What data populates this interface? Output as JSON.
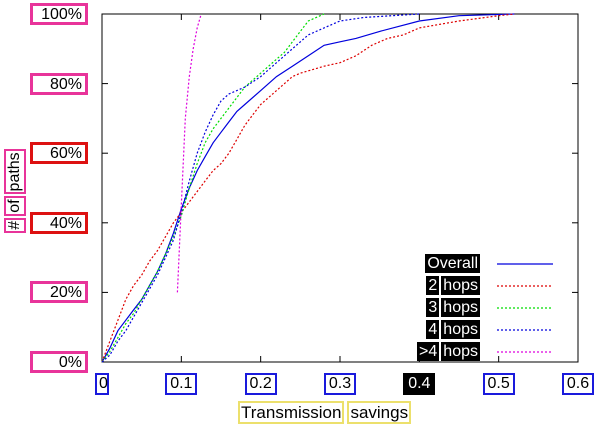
{
  "chart_data": {
    "type": "line",
    "xlabel": [
      "Transmission",
      "savings"
    ],
    "ylabel": [
      "#",
      "of",
      "paths"
    ],
    "xlim": [
      0,
      0.6
    ],
    "ylim": [
      0,
      100
    ],
    "x_ticks": [
      {
        "label": "0",
        "v": 0
      },
      {
        "label": "0.1",
        "v": 0.1
      },
      {
        "label": "0.2",
        "v": 0.2
      },
      {
        "label": "0.3",
        "v": 0.3
      },
      {
        "label": "0.4",
        "v": 0.4
      },
      {
        "label": "0.5",
        "v": 0.5
      },
      {
        "label": "0.6",
        "v": 0.6
      }
    ],
    "y_ticks": [
      {
        "label": "0%",
        "v": 0,
        "box": "#e8349a"
      },
      {
        "label": "20%",
        "v": 20,
        "box": "#e8349a"
      },
      {
        "label": "40%",
        "v": 40,
        "box": "#dd1111"
      },
      {
        "label": "60%",
        "v": 60,
        "box": "#dd1111"
      },
      {
        "label": "80%",
        "v": 80,
        "box": "#e8349a"
      },
      {
        "label": "100%",
        "v": 100,
        "box": "#e8349a"
      }
    ],
    "legend_position": "bottom-right",
    "series": [
      {
        "name": "Overall",
        "color": "#0000dd",
        "dash": "none",
        "legend": [
          "Overall"
        ],
        "points": [
          [
            0,
            0
          ],
          [
            0.01,
            4
          ],
          [
            0.02,
            9
          ],
          [
            0.03,
            12
          ],
          [
            0.04,
            15
          ],
          [
            0.05,
            18
          ],
          [
            0.06,
            22
          ],
          [
            0.07,
            26
          ],
          [
            0.08,
            31
          ],
          [
            0.09,
            37
          ],
          [
            0.1,
            44
          ],
          [
            0.11,
            50
          ],
          [
            0.12,
            55
          ],
          [
            0.13,
            59
          ],
          [
            0.14,
            63
          ],
          [
            0.15,
            66
          ],
          [
            0.16,
            69
          ],
          [
            0.17,
            72
          ],
          [
            0.18,
            74
          ],
          [
            0.2,
            78
          ],
          [
            0.22,
            82
          ],
          [
            0.24,
            85
          ],
          [
            0.26,
            88
          ],
          [
            0.28,
            91
          ],
          [
            0.3,
            92
          ],
          [
            0.32,
            93
          ],
          [
            0.35,
            95
          ],
          [
            0.4,
            98
          ],
          [
            0.45,
            99.5
          ],
          [
            0.52,
            100
          ]
        ]
      },
      {
        "name": "2 hops",
        "color": "#dd0000",
        "dash": "2,2",
        "legend": [
          "2",
          "hops"
        ],
        "points": [
          [
            0,
            0
          ],
          [
            0.01,
            6
          ],
          [
            0.02,
            12
          ],
          [
            0.03,
            18
          ],
          [
            0.04,
            22
          ],
          [
            0.05,
            25
          ],
          [
            0.06,
            29
          ],
          [
            0.07,
            32
          ],
          [
            0.08,
            36
          ],
          [
            0.09,
            40
          ],
          [
            0.1,
            43
          ],
          [
            0.11,
            46
          ],
          [
            0.12,
            49
          ],
          [
            0.13,
            52
          ],
          [
            0.14,
            55
          ],
          [
            0.15,
            57
          ],
          [
            0.16,
            60
          ],
          [
            0.17,
            64
          ],
          [
            0.18,
            68
          ],
          [
            0.19,
            71
          ],
          [
            0.2,
            74
          ],
          [
            0.22,
            78
          ],
          [
            0.24,
            82
          ],
          [
            0.25,
            83
          ],
          [
            0.28,
            85
          ],
          [
            0.3,
            86
          ],
          [
            0.32,
            88
          ],
          [
            0.34,
            91
          ],
          [
            0.36,
            93
          ],
          [
            0.38,
            94
          ],
          [
            0.4,
            96
          ],
          [
            0.45,
            98
          ],
          [
            0.5,
            99.5
          ],
          [
            0.52,
            100
          ]
        ]
      },
      {
        "name": "3 hops",
        "color": "#00dd00",
        "dash": "2,2",
        "legend": [
          "3",
          "hops"
        ],
        "points": [
          [
            0,
            0
          ],
          [
            0.01,
            3
          ],
          [
            0.02,
            7
          ],
          [
            0.03,
            11
          ],
          [
            0.04,
            14
          ],
          [
            0.05,
            18
          ],
          [
            0.06,
            22
          ],
          [
            0.07,
            26
          ],
          [
            0.08,
            31
          ],
          [
            0.09,
            36
          ],
          [
            0.1,
            42
          ],
          [
            0.11,
            50
          ],
          [
            0.12,
            57
          ],
          [
            0.13,
            63
          ],
          [
            0.14,
            67
          ],
          [
            0.15,
            70
          ],
          [
            0.16,
            73
          ],
          [
            0.17,
            76
          ],
          [
            0.18,
            79
          ],
          [
            0.2,
            83
          ],
          [
            0.22,
            87
          ],
          [
            0.23,
            89
          ],
          [
            0.24,
            92
          ],
          [
            0.25,
            95
          ],
          [
            0.26,
            98
          ],
          [
            0.28,
            100
          ]
        ]
      },
      {
        "name": "4 hops",
        "color": "#0000dd",
        "dash": "2,2",
        "legend": [
          "4",
          "hops"
        ],
        "points": [
          [
            0,
            0
          ],
          [
            0.01,
            2
          ],
          [
            0.02,
            6
          ],
          [
            0.03,
            9
          ],
          [
            0.04,
            13
          ],
          [
            0.05,
            17
          ],
          [
            0.06,
            21
          ],
          [
            0.07,
            25
          ],
          [
            0.08,
            30
          ],
          [
            0.09,
            35
          ],
          [
            0.1,
            43
          ],
          [
            0.11,
            52
          ],
          [
            0.12,
            60
          ],
          [
            0.13,
            66
          ],
          [
            0.14,
            71
          ],
          [
            0.15,
            75
          ],
          [
            0.16,
            77
          ],
          [
            0.18,
            79
          ],
          [
            0.2,
            82
          ],
          [
            0.22,
            86
          ],
          [
            0.24,
            90
          ],
          [
            0.26,
            94
          ],
          [
            0.28,
            96
          ],
          [
            0.3,
            98
          ],
          [
            0.33,
            99
          ],
          [
            0.4,
            100
          ]
        ]
      },
      {
        "name": ">4 hops",
        "color": "#dd00dd",
        "dash": "2,2",
        "legend": [
          ">4",
          "hops"
        ],
        "points": [
          [
            0.095,
            20
          ],
          [
            0.1,
            45
          ],
          [
            0.105,
            70
          ],
          [
            0.11,
            82
          ],
          [
            0.115,
            90
          ],
          [
            0.12,
            96
          ],
          [
            0.125,
            100
          ]
        ]
      }
    ]
  }
}
